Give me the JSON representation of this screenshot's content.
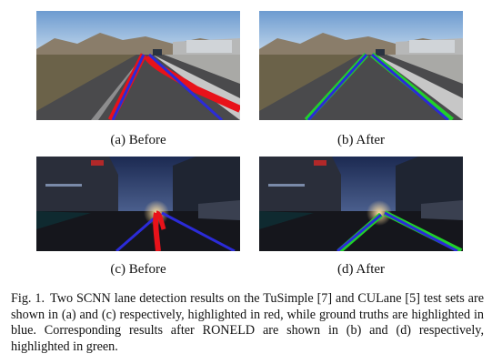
{
  "figure": {
    "subcaptions": {
      "a": "(a) Before",
      "b": "(b) After",
      "c": "(c) Before",
      "d": "(d) After"
    },
    "caption": {
      "label": "Fig. 1.",
      "text": "Two SCNN lane detection results on the TuSimple [7] and CULane [5] test sets are shown in (a) and (c) respectively, highlighted in red, while ground truths are highlighted in blue. Corresponding results after RONELD are shown in (b) and (d) respectively, highlighted in green."
    },
    "colors": {
      "detection_before": "#e8121a",
      "ground_truth": "#2b2bd8",
      "detection_after": "#22d02a"
    }
  }
}
